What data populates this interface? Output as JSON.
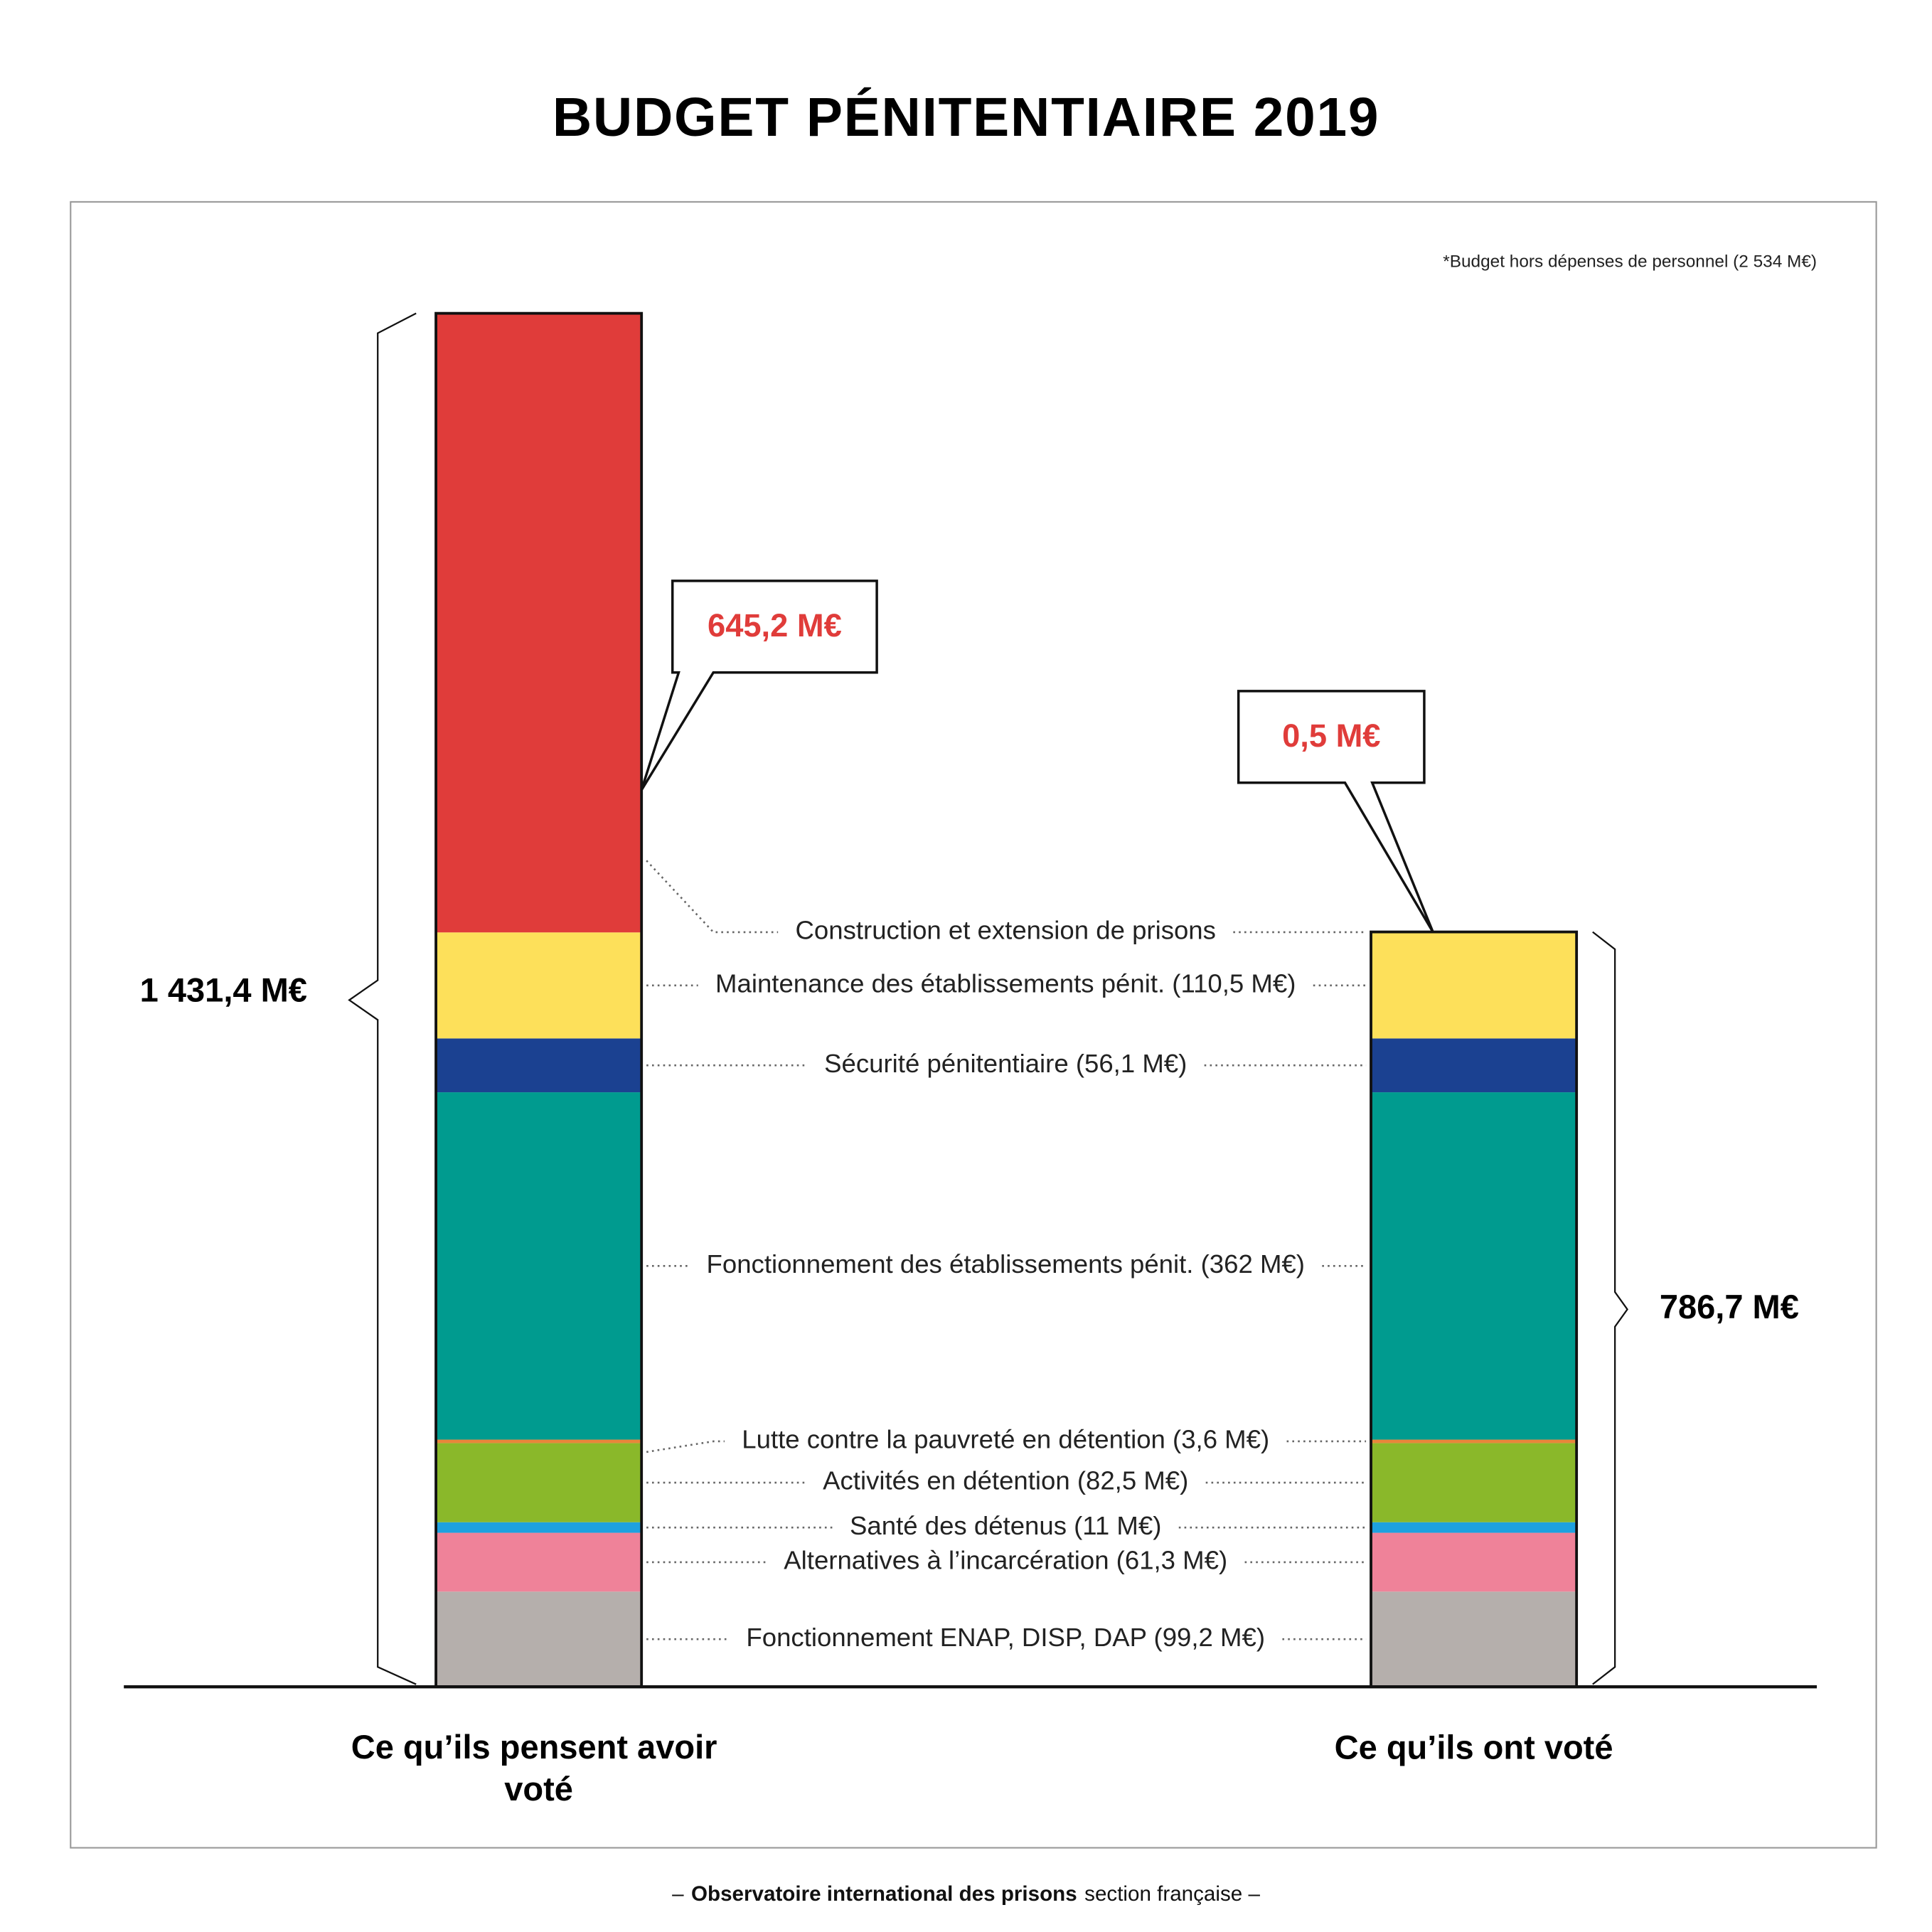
{
  "chart_data": {
    "type": "stacked_bar",
    "title": "BUDGET PÉNITENTIAIRE 2019",
    "note": "*Budget hors dépenses de personnel (2 534 M€)",
    "categories": [
      "Ce qu’ils pensent avoir voté",
      "Ce qu’ils ont voté"
    ],
    "series": [
      {
        "name": "Fonctionnement ENAP, DISP, DAP (99,2 M€)",
        "color": "#b5afac",
        "values": [
          99.2,
          99.2
        ]
      },
      {
        "name": "Alternatives à l’incarcération (61,3 M€)",
        "color": "#ef8299",
        "values": [
          61.3,
          61.3
        ]
      },
      {
        "name": "Santé des détenus (11 M€)",
        "color": "#1ea1df",
        "values": [
          11,
          11
        ]
      },
      {
        "name": "Activités en détention (82,5 M€)",
        "color": "#8ab82a",
        "values": [
          82.5,
          82.5
        ]
      },
      {
        "name": "Lutte contre la pauvreté en détention (3,6 M€)",
        "color": "#e9853a",
        "values": [
          3.6,
          3.6
        ]
      },
      {
        "name": "Fonctionnement des établissements pénit. (362 M€)",
        "color": "#009b8f",
        "values": [
          362,
          362
        ]
      },
      {
        "name": "Sécurité pénitentiaire (56,1 M€)",
        "color": "#1b4191",
        "values": [
          56.1,
          56.1
        ]
      },
      {
        "name": "Maintenance des établissements pénit. (110,5 M€)",
        "color": "#fde05a",
        "values": [
          110.5,
          110.5
        ]
      },
      {
        "name": "Construction et extension de prisons",
        "color": "#e03c3a",
        "values": [
          645.2,
          0.5
        ],
        "value_labels": [
          "645,2 M€",
          "0,5 M€"
        ]
      }
    ],
    "totals": [
      {
        "value": 1431.4,
        "label": "1 431,4 M€"
      },
      {
        "value": 786.7,
        "label": "786,7 M€"
      }
    ],
    "ylim": [
      0,
      1431.4
    ],
    "footer": [
      "–",
      "Observatoire international des prisons",
      "section française –"
    ]
  }
}
